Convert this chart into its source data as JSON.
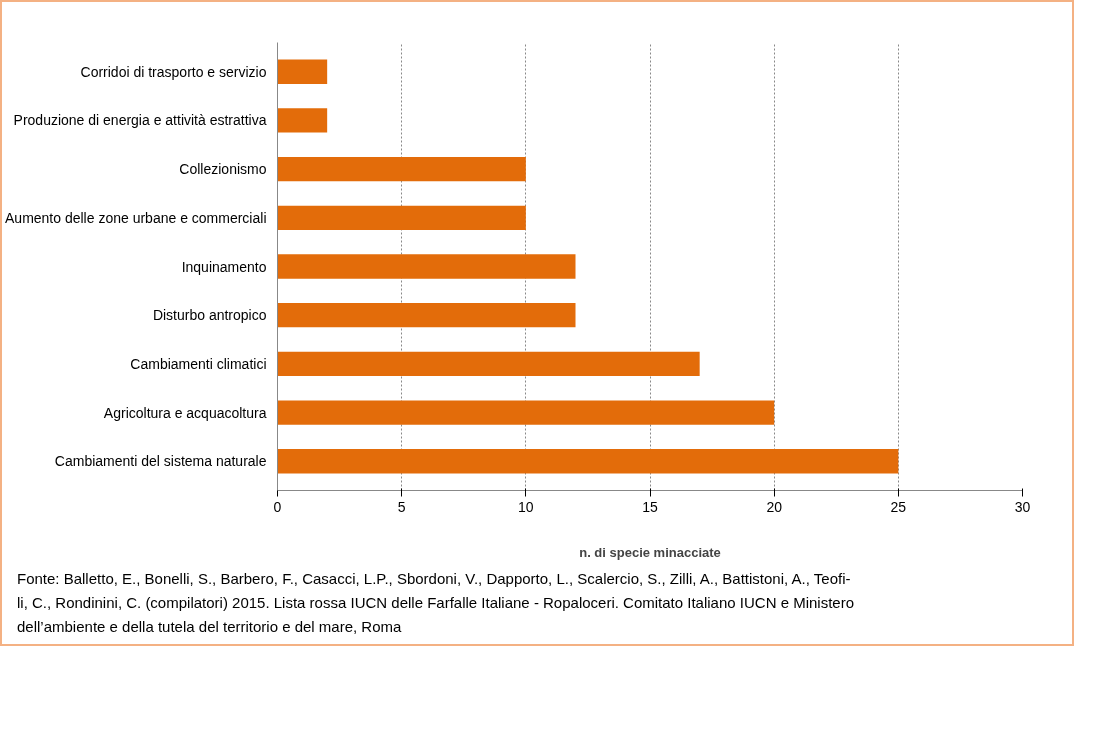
{
  "chart_data": {
    "type": "bar",
    "orientation": "horizontal",
    "categories": [
      "Corridoi di trasporto e servizio",
      "Produzione di energia e attività estrattiva",
      "Collezionismo",
      "Aumento delle zone urbane e commerciali",
      "Inquinamento",
      "Disturbo antropico",
      "Cambiamenti climatici",
      "Agricoltura e acquacoltura",
      "Cambiamenti del sistema naturale"
    ],
    "values": [
      2,
      2,
      10,
      10,
      12,
      12,
      17,
      20,
      25
    ],
    "color": "#e36c0a",
    "xlim": [
      0,
      30
    ],
    "xticks": [
      0,
      5,
      10,
      15,
      20,
      25,
      30
    ],
    "grid": "x",
    "xlabel": "n. di specie minacciate",
    "annotations": [
      "Fonte: Balletto, E., Bonelli, S., Barbero, F., Casacci, L.P., Sbordoni, V., Dapporto, L., Scalercio, S., Zilli, A., Battistoni, A., Teofi-\nli, C., Rondinini, C. (compilatori) 2015. Lista rossa IUCN delle Farfalle Italiane - Ropaloceri. Comitato Italiano IUCN e Ministero\ndell’ambiente e della tutela del territorio e del mare, Roma"
    ]
  }
}
